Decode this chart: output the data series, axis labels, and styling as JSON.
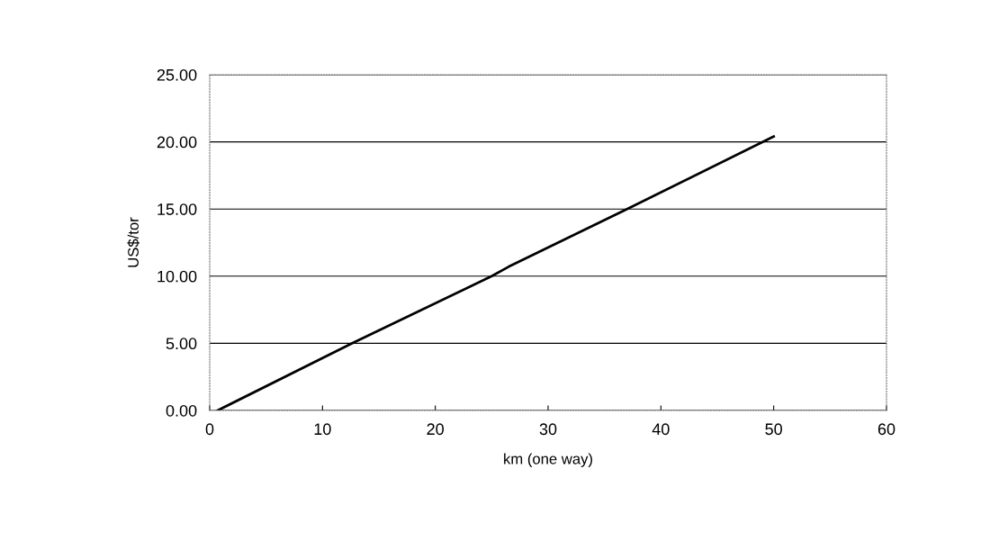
{
  "chart_data": {
    "type": "line",
    "xlabel": "km (one way)",
    "ylabel": "US$/tor",
    "x": [
      0.7,
      12.6,
      25,
      26.5,
      37,
      50
    ],
    "series": [
      {
        "color": "#000000",
        "values": [
          0,
          5,
          10,
          10.7,
          15,
          20.4
        ]
      }
    ],
    "xlim": [
      0,
      60
    ],
    "xticks": [
      0,
      10,
      20,
      30,
      40,
      50,
      60
    ],
    "ylim": [
      0,
      25
    ],
    "yticks": [
      {
        "value": 0,
        "label": "0.00"
      },
      {
        "value": 5,
        "label": "5.00"
      },
      {
        "value": 10,
        "label": "10.00"
      },
      {
        "value": 15,
        "label": "15.00"
      },
      {
        "value": 20,
        "label": "20.00"
      },
      {
        "value": 25,
        "label": "25.00"
      }
    ],
    "grid": "y",
    "legend": false,
    "marker": "none",
    "line_style": "solid"
  }
}
